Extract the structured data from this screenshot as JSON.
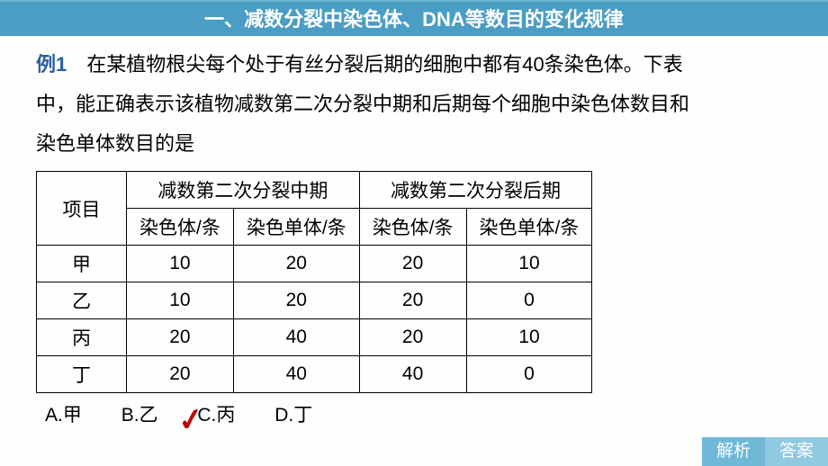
{
  "header": {
    "title": "一、减数分裂中染色体、DNA等数目的变化规律",
    "background_color": "#4a9dc4",
    "text_color": "#ffffff",
    "fontsize": 22
  },
  "question": {
    "label": "例1",
    "label_color": "#2a5fa5",
    "text_line1": "　在某植物根尖每个处于有丝分裂后期的细胞中都有40条染色体。下表",
    "text_line2": "中，能正确表示该植物减数第二次分裂中期和后期每个细胞中染色体数目和",
    "text_line3": "染色单体数目的是",
    "fontsize": 22
  },
  "table": {
    "type": "table",
    "border_color": "#000000",
    "fontsize": 21,
    "header_rowspan_label": "项目",
    "group_headers": [
      "减数第二次分裂中期",
      "减数第二次分裂后期"
    ],
    "sub_headers": [
      "染色体/条",
      "染色单体/条",
      "染色体/条",
      "染色单体/条"
    ],
    "rows": [
      {
        "label": "甲",
        "values": [
          "10",
          "20",
          "20",
          "10"
        ]
      },
      {
        "label": "乙",
        "values": [
          "10",
          "20",
          "20",
          "0"
        ]
      },
      {
        "label": "丙",
        "values": [
          "20",
          "40",
          "20",
          "10"
        ]
      },
      {
        "label": "丁",
        "values": [
          "20",
          "40",
          "40",
          "0"
        ]
      }
    ]
  },
  "options": {
    "items": [
      "A.甲",
      "B.乙",
      "C.丙",
      "D.丁"
    ],
    "fontsize": 21,
    "checked_index": 1,
    "checkmark_color": "#c00000"
  },
  "buttons": {
    "analyze": {
      "label": "解析",
      "bg": "#6fb8d8"
    },
    "answer": {
      "label": "答案",
      "bg": "#8fc9e2"
    }
  }
}
